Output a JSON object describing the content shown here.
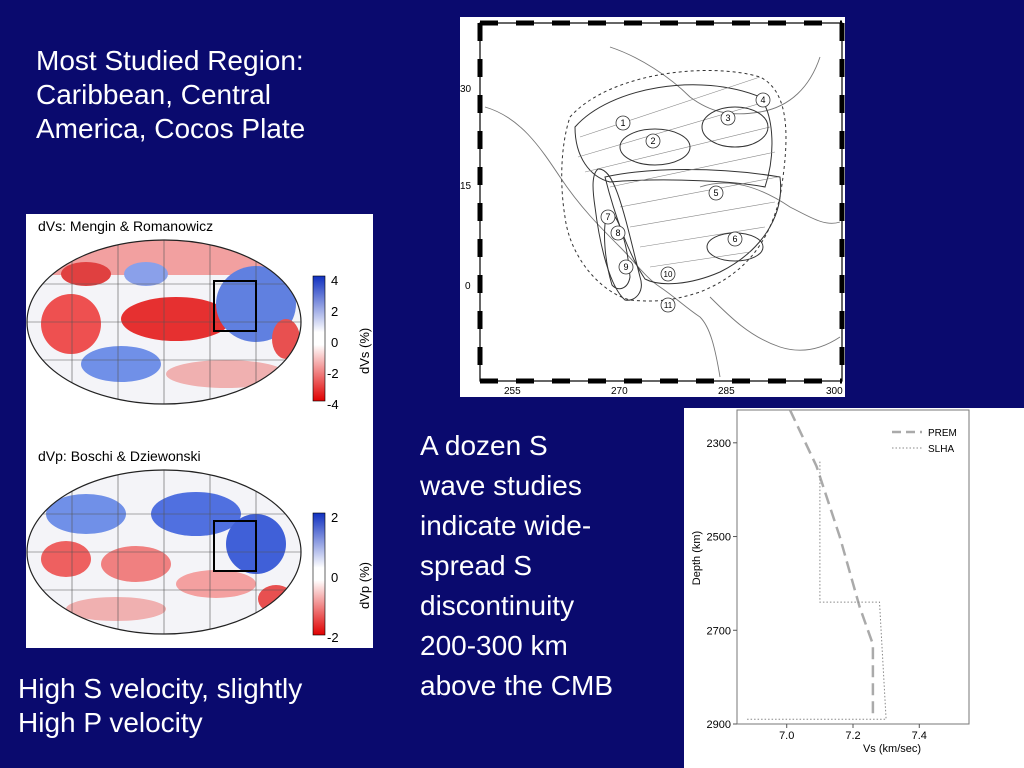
{
  "slide": {
    "title_lines": [
      "Most Studied Region:",
      "Caribbean, Central",
      "America, Cocos Plate"
    ],
    "left_note_lines": [
      "High S velocity, slightly",
      "High P velocity"
    ],
    "center_note_lines": [
      "A dozen S",
      "wave studies",
      "indicate wide-",
      "spread S",
      "discontinuity",
      "200-300 km",
      "above the CMB"
    ]
  },
  "tomography_maps": {
    "top": {
      "caption": "dVs: Mengin & Romanowicz",
      "colorbar_label": "dVs (%)",
      "colorbar_ticks": [
        "4",
        "2",
        "0",
        "-2",
        "-4"
      ]
    },
    "bottom": {
      "caption": "dVp: Boschi & Dziewonski",
      "colorbar_label": "dVp (%)",
      "colorbar_ticks": [
        "2",
        "0",
        "-2"
      ]
    }
  },
  "region_map": {
    "lat_labels": [
      "30",
      "15",
      "0"
    ],
    "lon_labels": [
      "255",
      "270",
      "285",
      "300"
    ],
    "study_numbers": [
      "1",
      "2",
      "3",
      "4",
      "5",
      "6",
      "7",
      "8",
      "9",
      "10",
      "11"
    ]
  },
  "chart_data": {
    "type": "line",
    "xlabel": "Vs (km/sec)",
    "ylabel": "Depth (km)",
    "xlim": [
      6.85,
      7.55
    ],
    "ylim": [
      2900,
      2230
    ],
    "x_ticks": [
      "7.0",
      "7.2",
      "7.4"
    ],
    "y_ticks": [
      "2300",
      "2500",
      "2700",
      "2900"
    ],
    "legend_position": "top-right",
    "series": [
      {
        "name": "PREM",
        "style": "dashed",
        "color": "#aaaaaa",
        "points": [
          [
            7.01,
            2230
          ],
          [
            7.09,
            2350
          ],
          [
            7.16,
            2500
          ],
          [
            7.22,
            2650
          ],
          [
            7.26,
            2730
          ],
          [
            7.26,
            2890
          ]
        ]
      },
      {
        "name": "SLHA",
        "style": "dotted",
        "color": "#888888",
        "points": [
          [
            7.1,
            2340
          ],
          [
            7.1,
            2640
          ],
          [
            7.28,
            2640
          ],
          [
            7.3,
            2890
          ],
          [
            6.88,
            2890
          ]
        ]
      }
    ]
  }
}
